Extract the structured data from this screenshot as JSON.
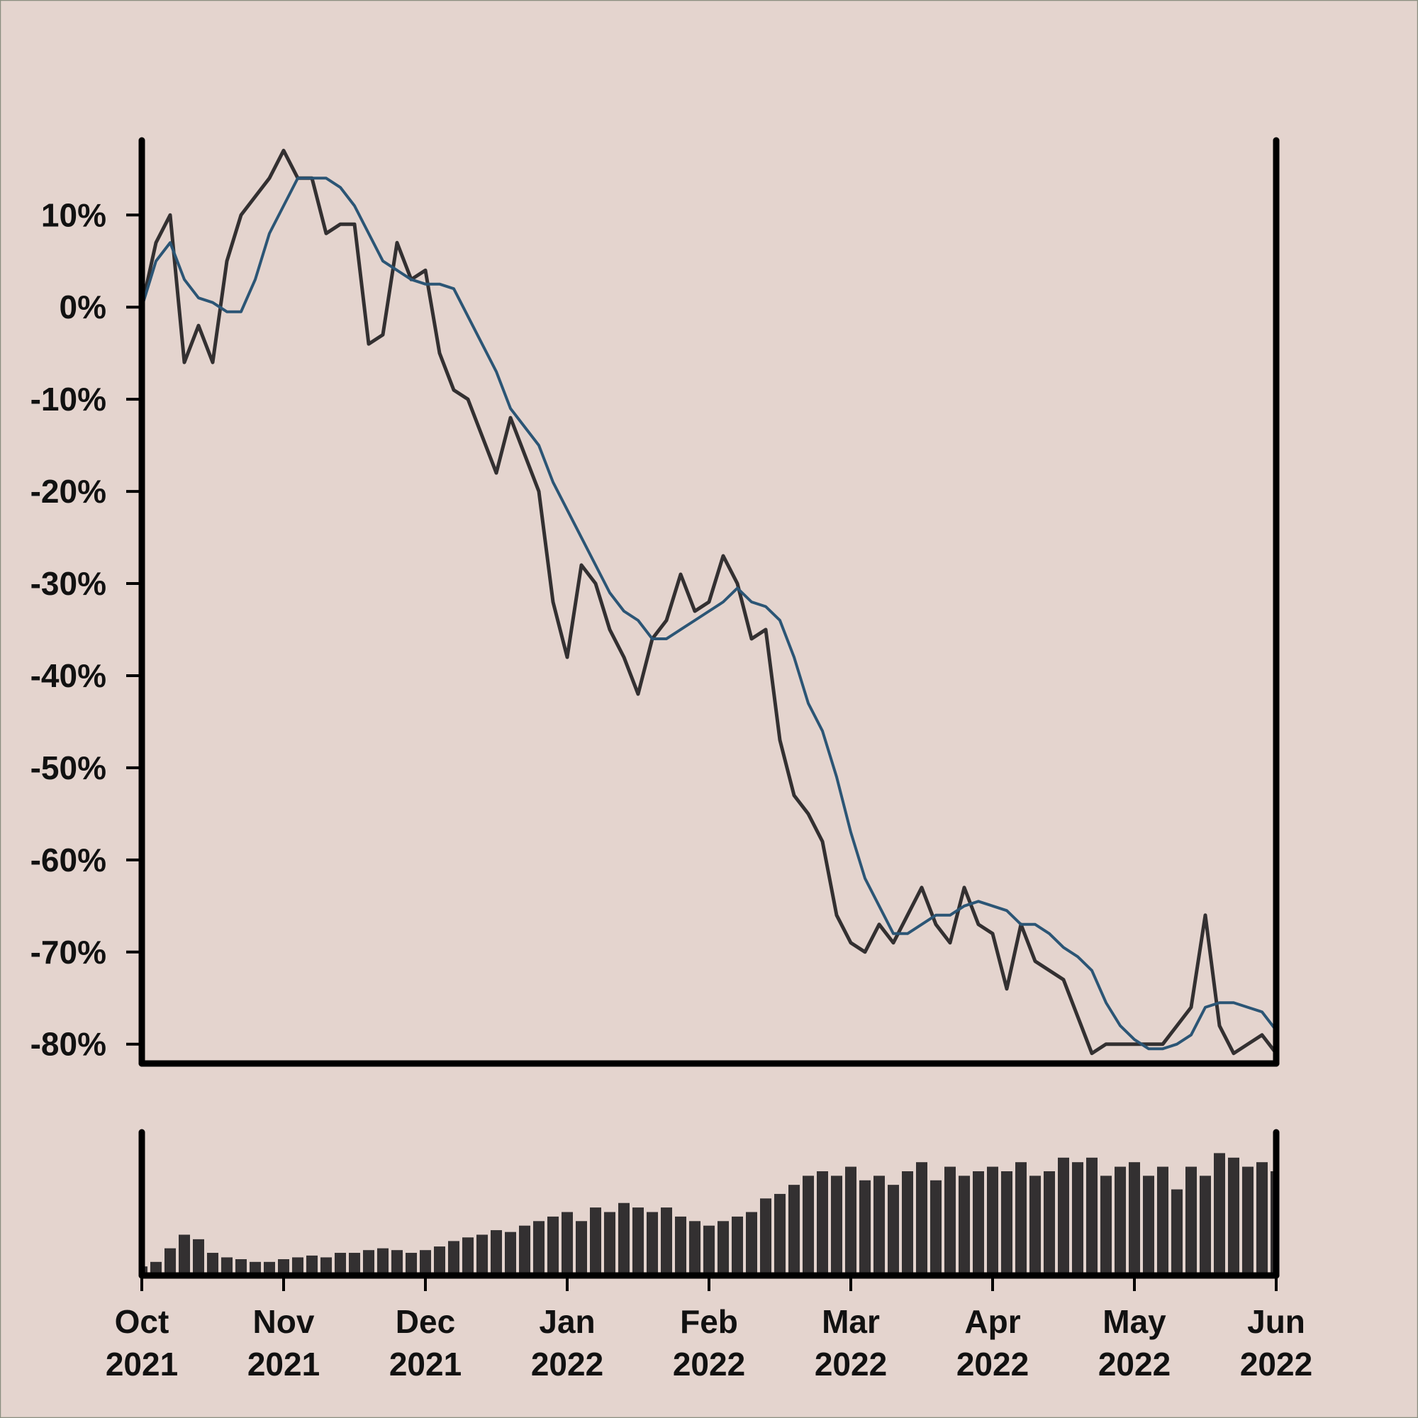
{
  "chart_data": [
    {
      "type": "line",
      "xlim": [
        0,
        8
      ],
      "ylim": [
        -82.1,
        18.1
      ],
      "yticks": [
        {
          "value": 10,
          "label": "10%"
        },
        {
          "value": 0,
          "label": "0%"
        },
        {
          "value": -10,
          "label": "-10%"
        },
        {
          "value": -20,
          "label": "-20%"
        },
        {
          "value": -30,
          "label": "-30%"
        },
        {
          "value": -40,
          "label": "-40%"
        },
        {
          "value": -50,
          "label": "-50%"
        },
        {
          "value": -60,
          "label": "-60%"
        },
        {
          "value": -70,
          "label": "-70%"
        },
        {
          "value": -80,
          "label": "-80%"
        }
      ],
      "series": [
        {
          "color": "#333031",
          "values": [
            0,
            7,
            10,
            -6,
            -2,
            -6,
            5,
            10,
            12,
            14,
            17,
            14,
            14,
            8,
            9,
            9,
            -4,
            -3,
            7,
            3,
            4,
            -5,
            -9,
            -10,
            -14,
            -18,
            -12,
            -16,
            -20,
            -32,
            -38,
            -28,
            -30,
            -35,
            -38,
            -42,
            -36,
            -34,
            -29,
            -33,
            -32,
            -27,
            -30,
            -36,
            -35,
            -47,
            -53,
            -55,
            -58,
            -66,
            -69,
            -70,
            -67,
            -69,
            -66,
            -63,
            -67,
            -69,
            -63,
            -67,
            -68,
            -74,
            -67,
            -71,
            -72,
            -73,
            -77,
            -81,
            -80,
            -80,
            -80,
            -80,
            -80,
            -78,
            -76,
            -66,
            -78,
            -81,
            -80,
            -79,
            -81
          ]
        },
        {
          "color": "#2b5575",
          "values": [
            0,
            5,
            7,
            3,
            1,
            0.5,
            -0.5,
            -0.5,
            3,
            8,
            11,
            14,
            14,
            14,
            13,
            11,
            8,
            5,
            4,
            3,
            2.5,
            2.5,
            2,
            -1,
            -4,
            -7,
            -11,
            -13,
            -15,
            -19,
            -22,
            -25,
            -28,
            -31,
            -33,
            -34,
            -36,
            -36,
            -35,
            -34,
            -33,
            -32,
            -30.5,
            -32,
            -32.5,
            -34,
            -38,
            -43,
            -46,
            -51,
            -57,
            -62,
            -65,
            -68,
            -68,
            -67,
            -66,
            -66,
            -65,
            -64.5,
            -65,
            -65.5,
            -67,
            -67,
            -68,
            -69.5,
            -70.5,
            -72,
            -75.5,
            -78,
            -79.5,
            -80.5,
            -80.5,
            -80,
            -79,
            -76,
            -75.5,
            -75.5,
            -76,
            -76.5,
            -78.5
          ]
        }
      ]
    },
    {
      "type": "bar",
      "xlim": [
        0,
        8
      ],
      "ylim": [
        0,
        158
      ],
      "xticks": [
        {
          "value": 0,
          "label": "Oct 2021"
        },
        {
          "value": 1,
          "label": "Nov 2021"
        },
        {
          "value": 2,
          "label": "Dec 2021"
        },
        {
          "value": 3,
          "label": "Jan 2022"
        },
        {
          "value": 4,
          "label": "Feb 2022"
        },
        {
          "value": 5,
          "label": "Mar 2022"
        },
        {
          "value": 6,
          "label": "Apr 2022"
        },
        {
          "value": 7,
          "label": "May 2022"
        },
        {
          "value": 8,
          "label": "Jun 2022"
        }
      ],
      "color": "#333031",
      "values": [
        10,
        15,
        30,
        45,
        40,
        25,
        20,
        18,
        15,
        15,
        18,
        20,
        22,
        20,
        25,
        25,
        28,
        30,
        28,
        25,
        28,
        32,
        38,
        42,
        45,
        50,
        48,
        55,
        60,
        65,
        70,
        60,
        75,
        70,
        80,
        75,
        70,
        75,
        65,
        60,
        55,
        60,
        65,
        70,
        85,
        90,
        100,
        110,
        115,
        110,
        120,
        105,
        110,
        100,
        115,
        125,
        105,
        120,
        110,
        115,
        120,
        115,
        125,
        110,
        115,
        130,
        125,
        130,
        110,
        120,
        125,
        110,
        120,
        95,
        120,
        110,
        135,
        130,
        120,
        125,
        115
      ]
    }
  ]
}
